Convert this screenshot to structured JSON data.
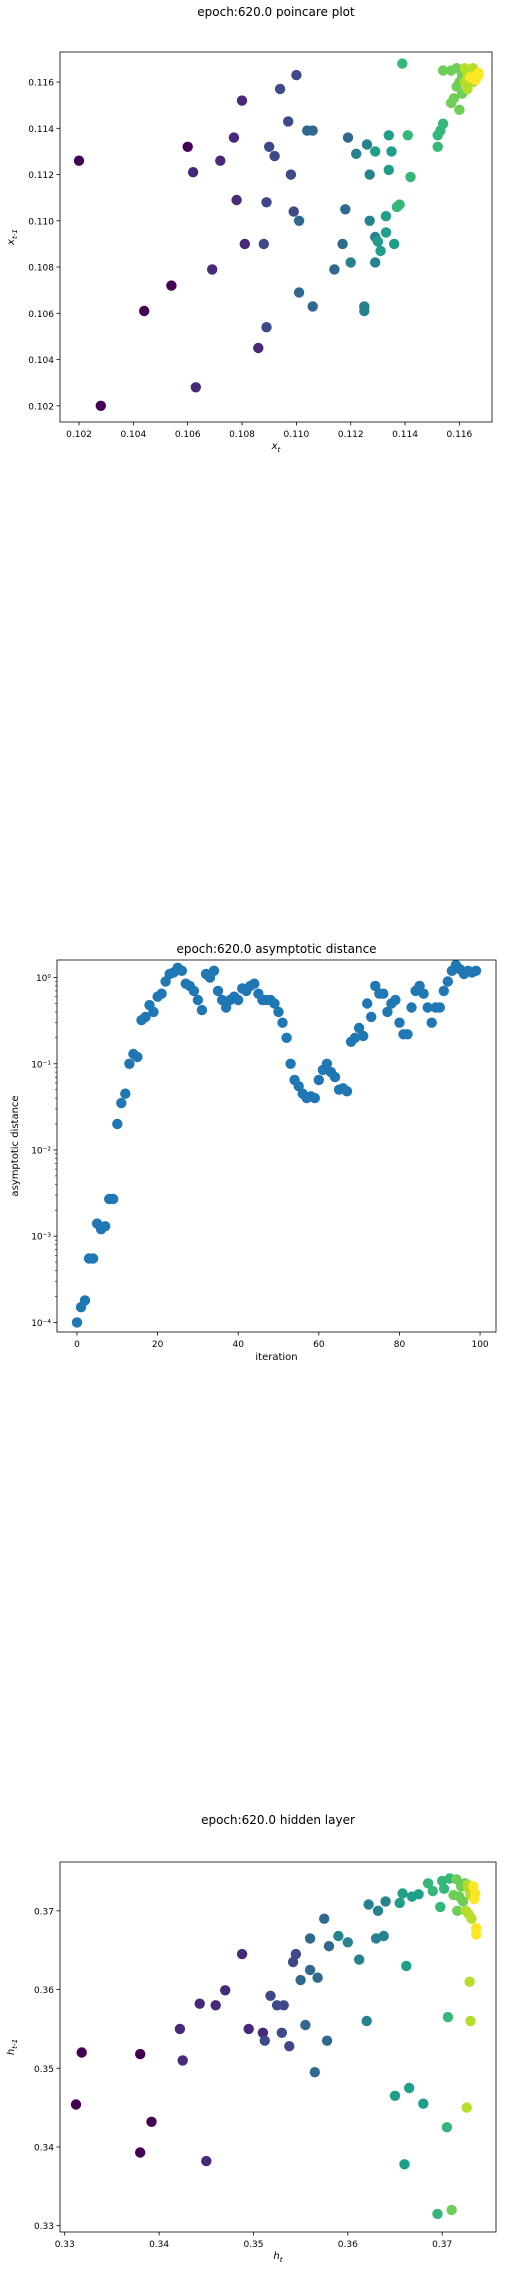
{
  "chart_data": [
    {
      "type": "scatter",
      "title": "epoch:620.0 poincare plot",
      "xlabel": "x_t",
      "ylabel": "x_{t-1}",
      "xlim": [
        0.1013,
        0.1172
      ],
      "ylim": [
        0.1013,
        0.1173
      ],
      "xticks": [
        0.102,
        0.104,
        0.106,
        0.108,
        0.11,
        0.112,
        0.114,
        0.116
      ],
      "yticks": [
        0.102,
        0.104,
        0.106,
        0.108,
        0.11,
        0.112,
        0.114,
        0.116
      ],
      "xtick_labels": [
        "0.102",
        "0.104",
        "0.106",
        "0.108",
        "0.110",
        "0.112",
        "0.114",
        "0.116"
      ],
      "ytick_labels": [
        "0.102",
        "0.104",
        "0.106",
        "0.108",
        "0.110",
        "0.112",
        "0.114",
        "0.116"
      ],
      "colormap": "viridis",
      "color_by": "point order",
      "points": [
        [
          0.102,
          0.1126
        ],
        [
          0.1028,
          0.102
        ],
        [
          0.1044,
          0.1061
        ],
        [
          0.1054,
          0.1072
        ],
        [
          0.106,
          0.1132
        ],
        [
          0.1062,
          0.1121
        ],
        [
          0.1063,
          0.1028
        ],
        [
          0.1069,
          0.1079
        ],
        [
          0.1072,
          0.1126
        ],
        [
          0.1077,
          0.1136
        ],
        [
          0.1078,
          0.1109
        ],
        [
          0.108,
          0.1152
        ],
        [
          0.1081,
          0.109
        ],
        [
          0.1086,
          0.1045
        ],
        [
          0.1088,
          0.109
        ],
        [
          0.1089,
          0.1108
        ],
        [
          0.1089,
          0.1054
        ],
        [
          0.109,
          0.1132
        ],
        [
          0.1092,
          0.1128
        ],
        [
          0.1094,
          0.1157
        ],
        [
          0.1097,
          0.1143
        ],
        [
          0.1098,
          0.112
        ],
        [
          0.1099,
          0.1104
        ],
        [
          0.11,
          0.1163
        ],
        [
          0.1101,
          0.11
        ],
        [
          0.1101,
          0.1069
        ],
        [
          0.1104,
          0.1139
        ],
        [
          0.1106,
          0.1063
        ],
        [
          0.1106,
          0.1139
        ],
        [
          0.1114,
          0.1079
        ],
        [
          0.1117,
          0.109
        ],
        [
          0.1118,
          0.1105
        ],
        [
          0.1119,
          0.1136
        ],
        [
          0.112,
          0.1082
        ],
        [
          0.1122,
          0.1129
        ],
        [
          0.1125,
          0.1063
        ],
        [
          0.1125,
          0.1061
        ],
        [
          0.1126,
          0.1133
        ],
        [
          0.1127,
          0.11
        ],
        [
          0.1127,
          0.112
        ],
        [
          0.1129,
          0.1093
        ],
        [
          0.1129,
          0.1082
        ],
        [
          0.1129,
          0.113
        ],
        [
          0.113,
          0.1091
        ],
        [
          0.1131,
          0.1087
        ],
        [
          0.1133,
          0.1102
        ],
        [
          0.1133,
          0.1095
        ],
        [
          0.1134,
          0.1137
        ],
        [
          0.1134,
          0.1122
        ],
        [
          0.1135,
          0.113
        ],
        [
          0.1136,
          0.109
        ],
        [
          0.1137,
          0.1106
        ],
        [
          0.1138,
          0.1107
        ],
        [
          0.1139,
          0.1168
        ],
        [
          0.1141,
          0.1137
        ],
        [
          0.1142,
          0.1119
        ],
        [
          0.1152,
          0.1132
        ],
        [
          0.1152,
          0.1137
        ],
        [
          0.1153,
          0.1139
        ],
        [
          0.1154,
          0.1142
        ],
        [
          0.1154,
          0.1165
        ],
        [
          0.1157,
          0.1165
        ],
        [
          0.1157,
          0.1151
        ],
        [
          0.1158,
          0.1153
        ],
        [
          0.1159,
          0.1166
        ],
        [
          0.1159,
          0.1158
        ],
        [
          0.116,
          0.116
        ],
        [
          0.116,
          0.1148
        ],
        [
          0.1161,
          0.1163
        ],
        [
          0.1161,
          0.1155
        ],
        [
          0.1162,
          0.1166
        ],
        [
          0.1162,
          0.116
        ],
        [
          0.1163,
          0.1164
        ],
        [
          0.1163,
          0.1163
        ],
        [
          0.1163,
          0.1157
        ],
        [
          0.1164,
          0.1162
        ],
        [
          0.1164,
          0.1165
        ],
        [
          0.1165,
          0.116
        ],
        [
          0.1165,
          0.1166
        ],
        [
          0.1166,
          0.1162
        ],
        [
          0.1166,
          0.1161
        ],
        [
          0.1167,
          0.1164
        ],
        [
          0.1167,
          0.1163
        ],
        [
          0.1164,
          0.1162
        ]
      ]
    },
    {
      "type": "scatter",
      "title": "epoch:620.0 asymptotic distance",
      "xlabel": "iteration",
      "ylabel": "asymptotic distance",
      "yscale": "log",
      "xlim": [
        -4.95,
        103.95
      ],
      "ylim": [
        7.73e-05,
        1.6
      ],
      "xticks": [
        0,
        20,
        40,
        60,
        80,
        100
      ],
      "xtick_labels": [
        "0",
        "20",
        "40",
        "60",
        "80",
        "100"
      ],
      "yticks": [
        0.0001,
        0.001,
        0.01,
        0.1,
        1
      ],
      "ytick_labels": [
        "10⁻⁴",
        "10⁻³",
        "10⁻²",
        "10⁻¹",
        "10⁰"
      ],
      "color": "#1f77b4",
      "y": [
        0.0001,
        0.00015,
        0.00018,
        0.00055,
        0.00055,
        0.0014,
        0.0012,
        0.0013,
        0.0027,
        0.0027,
        0.02,
        0.035,
        0.045,
        0.1,
        0.13,
        0.12,
        0.32,
        0.35,
        0.48,
        0.4,
        0.6,
        0.65,
        0.9,
        1.1,
        1.15,
        1.3,
        1.2,
        0.85,
        0.8,
        0.7,
        0.55,
        0.42,
        1.1,
        1.0,
        1.2,
        0.7,
        0.55,
        0.45,
        0.55,
        0.6,
        0.55,
        0.75,
        0.7,
        0.8,
        0.85,
        0.65,
        0.55,
        0.55,
        0.55,
        0.5,
        0.4,
        0.3,
        0.2,
        0.1,
        0.065,
        0.055,
        0.045,
        0.04,
        0.042,
        0.04,
        0.065,
        0.085,
        0.1,
        0.08,
        0.07,
        0.05,
        0.052,
        0.048,
        0.18,
        0.2,
        0.26,
        0.21,
        0.5,
        0.35,
        0.8,
        0.65,
        0.65,
        0.4,
        0.5,
        0.55,
        0.3,
        0.22,
        0.22,
        0.45,
        0.7,
        0.8,
        0.65,
        0.45,
        0.3,
        0.45,
        0.45,
        0.7,
        0.9,
        1.2,
        1.4,
        1.25,
        1.1,
        1.2,
        1.15,
        1.2
      ]
    },
    {
      "type": "scatter",
      "title": "epoch:620.0 hidden layer",
      "xlabel": "h_t",
      "ylabel": "h_{t-1}",
      "xlim": [
        0.3295,
        0.3757
      ],
      "ylim": [
        0.3292,
        0.3762
      ],
      "xticks": [
        0.33,
        0.34,
        0.35,
        0.36,
        0.37
      ],
      "yticks": [
        0.33,
        0.34,
        0.35,
        0.36,
        0.37
      ],
      "xtick_labels": [
        "0.33",
        "0.34",
        "0.35",
        "0.36",
        "0.37"
      ],
      "ytick_labels": [
        "0.33",
        "0.34",
        "0.35",
        "0.36",
        "0.37"
      ],
      "colormap": "viridis",
      "color_by": "point order",
      "points": [
        [
          0.3312,
          0.3454
        ],
        [
          0.3318,
          0.352
        ],
        [
          0.338,
          0.3518
        ],
        [
          0.338,
          0.3393
        ],
        [
          0.3392,
          0.3432
        ],
        [
          0.3422,
          0.355
        ],
        [
          0.3425,
          0.351
        ],
        [
          0.3443,
          0.3582
        ],
        [
          0.345,
          0.3382
        ],
        [
          0.346,
          0.358
        ],
        [
          0.347,
          0.3599
        ],
        [
          0.3488,
          0.3645
        ],
        [
          0.3495,
          0.355
        ],
        [
          0.351,
          0.3545
        ],
        [
          0.3512,
          0.3535
        ],
        [
          0.3518,
          0.3592
        ],
        [
          0.3525,
          0.358
        ],
        [
          0.353,
          0.3545
        ],
        [
          0.3532,
          0.358
        ],
        [
          0.3538,
          0.3528
        ],
        [
          0.3542,
          0.3635
        ],
        [
          0.3545,
          0.3645
        ],
        [
          0.355,
          0.3612
        ],
        [
          0.3555,
          0.3555
        ],
        [
          0.356,
          0.3625
        ],
        [
          0.356,
          0.3665
        ],
        [
          0.3565,
          0.3495
        ],
        [
          0.3568,
          0.3615
        ],
        [
          0.3575,
          0.369
        ],
        [
          0.3578,
          0.3535
        ],
        [
          0.358,
          0.3655
        ],
        [
          0.359,
          0.3668
        ],
        [
          0.36,
          0.366
        ],
        [
          0.3612,
          0.3638
        ],
        [
          0.362,
          0.356
        ],
        [
          0.3622,
          0.3708
        ],
        [
          0.363,
          0.3665
        ],
        [
          0.3632,
          0.37
        ],
        [
          0.3638,
          0.3668
        ],
        [
          0.364,
          0.3712
        ],
        [
          0.365,
          0.3465
        ],
        [
          0.3655,
          0.371
        ],
        [
          0.3658,
          0.3722
        ],
        [
          0.366,
          0.3378
        ],
        [
          0.3662,
          0.363
        ],
        [
          0.3665,
          0.3475
        ],
        [
          0.3668,
          0.3718
        ],
        [
          0.3675,
          0.3721
        ],
        [
          0.368,
          0.3455
        ],
        [
          0.3685,
          0.3735
        ],
        [
          0.369,
          0.3725
        ],
        [
          0.3695,
          0.3315
        ],
        [
          0.3698,
          0.3705
        ],
        [
          0.37,
          0.3738
        ],
        [
          0.3702,
          0.3728
        ],
        [
          0.3705,
          0.3425
        ],
        [
          0.3706,
          0.3565
        ],
        [
          0.3708,
          0.3741
        ],
        [
          0.371,
          0.332
        ],
        [
          0.3712,
          0.372
        ],
        [
          0.3715,
          0.374
        ],
        [
          0.3716,
          0.37
        ],
        [
          0.3718,
          0.3718
        ],
        [
          0.372,
          0.3731
        ],
        [
          0.3722,
          0.3712
        ],
        [
          0.3724,
          0.3735
        ],
        [
          0.3725,
          0.37
        ],
        [
          0.3726,
          0.345
        ],
        [
          0.3727,
          0.3733
        ],
        [
          0.3728,
          0.3696
        ],
        [
          0.3728,
          0.3728
        ],
        [
          0.3729,
          0.361
        ],
        [
          0.373,
          0.372
        ],
        [
          0.373,
          0.356
        ],
        [
          0.3731,
          0.369
        ],
        [
          0.3733,
          0.3731
        ],
        [
          0.3735,
          0.3722
        ],
        [
          0.3736,
          0.3678
        ],
        [
          0.3736,
          0.367
        ],
        [
          0.3734,
          0.3715
        ]
      ]
    }
  ]
}
